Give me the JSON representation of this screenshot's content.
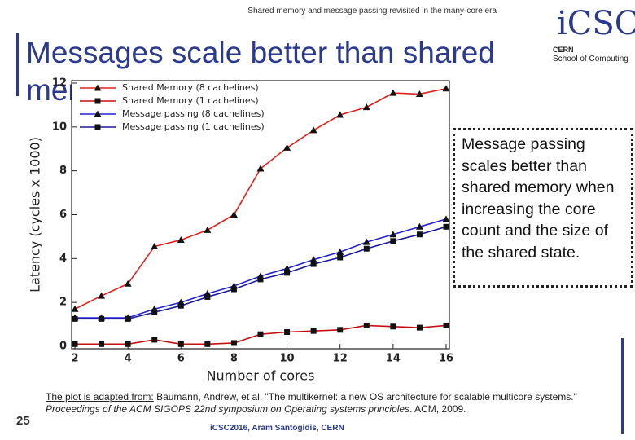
{
  "slide": {
    "header": "Shared memory and message passing revisited in the many-core era",
    "title": "Messages scale better than shared memory",
    "logo": {
      "mark": "iCSC",
      "org": "CERN",
      "school": "School of Computing"
    },
    "callout": "Message passing scales better than shared memory when increasing the core count and the size of the shared state.",
    "citation": {
      "lead": "The plot is adapted from:",
      "body": " Baumann, Andrew, et al. \"The multikernel: a new OS architecture for scalable multicore systems.\" ",
      "venue": "Proceedings of the ACM SIGOPS 22nd symposium on Operating systems principles",
      "tail": ". ACM, 2009."
    },
    "page_number": "25",
    "footer": "iCSC2016, Aram Santogidis, CERN"
  },
  "chart_data": {
    "type": "line",
    "x_label": "Number of cores",
    "y_label": "Latency (cycles x 1000)",
    "x": [
      2,
      3,
      4,
      5,
      6,
      7,
      8,
      9,
      10,
      11,
      12,
      13,
      14,
      15,
      16
    ],
    "series": [
      {
        "name": "Shared Memory (8 cachelines)",
        "color": "#e0201c",
        "marker": "triangle",
        "values": [
          1.7,
          2.3,
          2.85,
          4.55,
          4.85,
          5.3,
          6.0,
          8.1,
          9.05,
          9.85,
          10.55,
          10.9,
          11.55,
          11.5,
          11.75
        ]
      },
      {
        "name": "Shared Memory (1 cachelines)",
        "color": "#c41010",
        "marker": "square",
        "values": [
          0.1,
          0.1,
          0.1,
          0.3,
          0.1,
          0.1,
          0.15,
          0.55,
          0.65,
          0.7,
          0.75,
          0.95,
          0.9,
          0.85,
          0.95
        ]
      },
      {
        "name": "Message passing (8 cachelines)",
        "color": "#2323d6",
        "marker": "triangle",
        "values": [
          1.3,
          1.3,
          1.3,
          1.7,
          2.0,
          2.4,
          2.75,
          3.2,
          3.55,
          3.95,
          4.3,
          4.75,
          5.1,
          5.45,
          5.8
        ]
      },
      {
        "name": "Message passing (1 cachelines)",
        "color": "#1a1a9a",
        "marker": "square",
        "values": [
          1.25,
          1.25,
          1.25,
          1.55,
          1.85,
          2.25,
          2.6,
          3.05,
          3.35,
          3.75,
          4.05,
          4.45,
          4.8,
          5.1,
          5.45
        ]
      }
    ],
    "xlim": [
      2,
      16
    ],
    "xticks": [
      2,
      4,
      6,
      8,
      10,
      12,
      14,
      16
    ],
    "ylim": [
      0,
      12
    ],
    "yticks": [
      0,
      2,
      4,
      6,
      8,
      10,
      12
    ],
    "legend": "upper-left"
  }
}
